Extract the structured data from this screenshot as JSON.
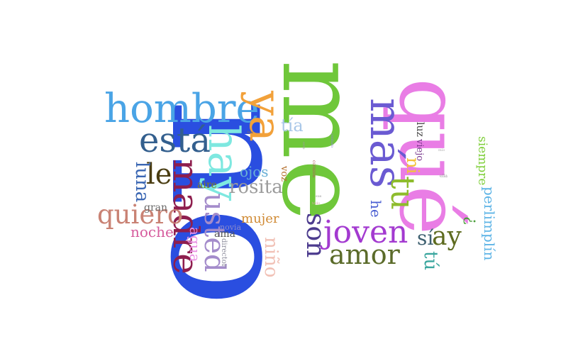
{
  "words": [
    {
      "key": "no",
      "text": "no",
      "color": "#2a4ee0"
    },
    {
      "key": "me",
      "text": "me",
      "color": "#6fc73a"
    },
    {
      "key": "que",
      "text": "qué",
      "color": "#e97de5"
    },
    {
      "key": "hombre",
      "text": "hombre",
      "color": "#4aa4e6"
    },
    {
      "key": "ya",
      "text": "ya",
      "color": "#f2a13a"
    },
    {
      "key": "mas",
      "text": "más",
      "color": "#6a5ad2"
    },
    {
      "key": "hay",
      "text": "hay",
      "color": "#7ee8e0"
    },
    {
      "key": "esta",
      "text": "está",
      "color": "#335f8e"
    },
    {
      "key": "le",
      "text": "le",
      "color": "#4a3d12"
    },
    {
      "key": "madre",
      "text": "madre",
      "color": "#8e1e4e"
    },
    {
      "key": "quiero",
      "text": "quiero",
      "color": "#c98274"
    },
    {
      "key": "usted",
      "text": "usted",
      "color": "#a48ccb"
    },
    {
      "key": "luna",
      "text": "luna",
      "color": "#3a66b3"
    },
    {
      "key": "noche",
      "text": "noche",
      "color": "#d65b9d"
    },
    {
      "key": "agua",
      "text": "agua",
      "color": "#e98fe3"
    },
    {
      "key": "tia",
      "text": "tía",
      "color": "#a9c7e8"
    },
    {
      "key": "ojos",
      "text": "ojos",
      "color": "#69b0d6"
    },
    {
      "key": "rosita",
      "text": "rosita",
      "color": "#9b9b9b"
    },
    {
      "key": "aire",
      "text": "aire",
      "color": "#7f7f20"
    },
    {
      "key": "gran",
      "text": "gran",
      "color": "#6a6a6a"
    },
    {
      "key": "voz",
      "text": "voz",
      "color": "#b36e2a"
    },
    {
      "key": "mujer",
      "text": "mujer",
      "color": "#d08a34"
    },
    {
      "key": "novia",
      "text": "novia",
      "color": "#8a8acb"
    },
    {
      "key": "ama",
      "text": "ama",
      "color": "#555555"
    },
    {
      "key": "director",
      "text": "director",
      "color": "#8a8a9a"
    },
    {
      "key": "nino",
      "text": "niño",
      "color": "#f1c1b6"
    },
    {
      "key": "son",
      "text": "son",
      "color": "#4c3b8e"
    },
    {
      "key": "joven",
      "text": "joven",
      "color": "#a33ad0"
    },
    {
      "key": "amor",
      "text": "amor",
      "color": "#5b6b2a"
    },
    {
      "key": "ni",
      "text": "ni",
      "color": "#f3c23a"
    },
    {
      "key": "tu",
      "text": "tu",
      "color": "#8ebc2c"
    },
    {
      "key": "he",
      "text": "he",
      "color": "#4b5fd2"
    },
    {
      "key": "luz",
      "text": "luz",
      "color": "#404040"
    },
    {
      "key": "viejo",
      "text": "viejo",
      "color": "#7a3a8e"
    },
    {
      "key": "si",
      "text": "sí",
      "color": "#3e6070"
    },
    {
      "key": "ay",
      "text": "ay",
      "color": "#5e6b1f"
    },
    {
      "key": "tu2",
      "text": "tú",
      "color": "#3aa69e"
    },
    {
      "key": "siempre",
      "text": "siempre",
      "color": "#7fcf3a"
    },
    {
      "key": "perlimplin",
      "text": "perlimplín",
      "color": "#5eb4e6"
    },
    {
      "key": "quote",
      "text": "¿",
      "color": "#4a9e3a"
    },
    {
      "key": "tan",
      "text": "tan",
      "color": "#9a7a3a"
    },
    {
      "key": "esto",
      "text": "esto",
      "color": "#9a9a9a"
    },
    {
      "key": "corazon",
      "text": "corazón",
      "color": "#b05a5a"
    },
    {
      "key": "cuidado",
      "text": "cuidado",
      "color": "#8a8acb"
    },
    {
      "key": "ella",
      "text": "ella",
      "color": "#9a9a9a"
    },
    {
      "key": "sus",
      "text": "sus",
      "color": "#9a9a9a"
    },
    {
      "key": "todo",
      "text": "todo",
      "color": "#d7a6a6"
    },
    {
      "key": "mio",
      "text": "mío",
      "color": "#b0b0b0"
    }
  ]
}
